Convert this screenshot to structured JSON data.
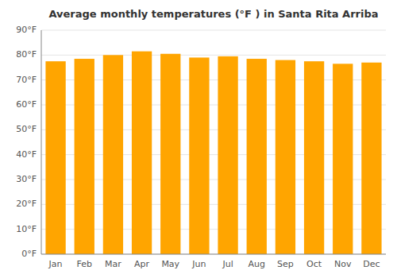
{
  "chart_data": {
    "type": "bar",
    "title": "Average monthly temperatures (°F ) in Santa Rita Arriba",
    "categories": [
      "Jan",
      "Feb",
      "Mar",
      "Apr",
      "May",
      "Jun",
      "Jul",
      "Aug",
      "Sep",
      "Oct",
      "Nov",
      "Dec"
    ],
    "values": [
      77.5,
      78.5,
      80.0,
      81.5,
      80.5,
      79.0,
      79.5,
      78.5,
      78.0,
      77.5,
      76.5,
      77.0
    ],
    "color": "#FFA500",
    "ylim": [
      0,
      90
    ],
    "yticks": [
      {
        "value": 0,
        "label": "0°F"
      },
      {
        "value": 10,
        "label": "10°F"
      },
      {
        "value": 20,
        "label": "20°F"
      },
      {
        "value": 30,
        "label": "30°F"
      },
      {
        "value": 40,
        "label": "40°F"
      },
      {
        "value": 50,
        "label": "50°F"
      },
      {
        "value": 60,
        "label": "60°F"
      },
      {
        "value": 70,
        "label": "70°F"
      },
      {
        "value": 80,
        "label": "80°F"
      },
      {
        "value": 90,
        "label": "90°F"
      }
    ],
    "grid": true
  }
}
